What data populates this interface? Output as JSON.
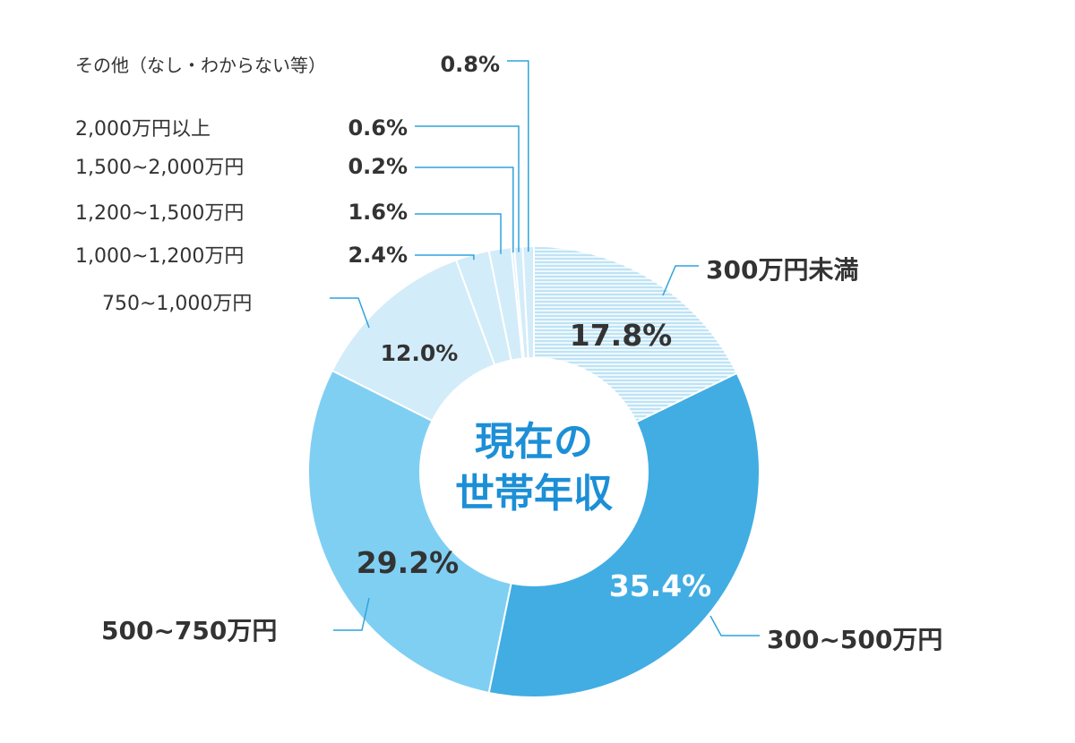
{
  "chart_data": {
    "type": "pie",
    "title": "現在の世帯年収",
    "categories": [
      "300万円未満",
      "300~500万円",
      "500~750万円",
      "750~1,000万円",
      "1,000~1,200万円",
      "1,200~1,500万円",
      "1,500~2,000万円",
      "2,000万円以上",
      "その他（なし・わからない等）"
    ],
    "values": [
      17.8,
      35.4,
      29.2,
      12.0,
      2.4,
      1.6,
      0.2,
      0.6,
      0.8
    ],
    "value_labels": [
      "17.8%",
      "35.4%",
      "29.2%",
      "12.0%",
      "2.4%",
      "1.6%",
      "0.2%",
      "0.6%",
      "0.8%"
    ],
    "colors": [
      "#e3f3fc",
      "#41ade3",
      "#7fcff3",
      "#d3ecf9",
      "#d3ecf9",
      "#d3ecf9",
      "#d3ecf9",
      "#d3ecf9",
      "#d3ecf9"
    ],
    "center_text": [
      "現在の",
      "世帯年収"
    ],
    "leader_color": "#2fa3dc",
    "hatched_first_slice": true
  }
}
